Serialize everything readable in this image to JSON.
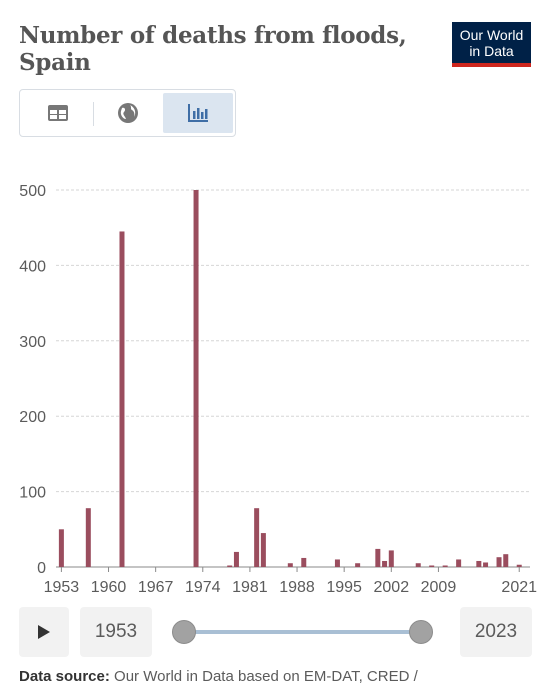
{
  "header": {
    "title_line1": "Number of deaths from floods,",
    "title_line2": "Spain",
    "logo_line1": "Our World",
    "logo_line2": "in Data"
  },
  "tabs": [
    {
      "name": "table",
      "icon": "table-icon",
      "active": false
    },
    {
      "name": "map",
      "icon": "globe-icon",
      "active": false
    },
    {
      "name": "chart",
      "icon": "bar-chart-icon",
      "active": true
    }
  ],
  "chart_data": {
    "type": "bar",
    "title": "Number of deaths from floods, Spain",
    "xlabel": "",
    "ylabel": "",
    "ylim": [
      0,
      500
    ],
    "y_ticks": [
      0,
      100,
      200,
      300,
      400,
      500
    ],
    "x_ticks": [
      "1953",
      "1960",
      "1967",
      "1974",
      "1981",
      "1988",
      "1995",
      "2002",
      "2009",
      "2021"
    ],
    "grid": true,
    "bar_color": "#9a4d5e",
    "x": [
      1953,
      1957,
      1962,
      1973,
      1978,
      1979,
      1982,
      1983,
      1987,
      1989,
      1994,
      1997,
      2000,
      2001,
      2002,
      2006,
      2008,
      2010,
      2012,
      2015,
      2016,
      2018,
      2019,
      2021
    ],
    "values": [
      50,
      78,
      445,
      500,
      2,
      20,
      78,
      45,
      5,
      12,
      10,
      5,
      24,
      8,
      22,
      5,
      2,
      2,
      10,
      8,
      6,
      13,
      17,
      3
    ]
  },
  "timeline": {
    "start_year": "1953",
    "end_year": "2023",
    "play_icon": "play-icon"
  },
  "source": {
    "label": "Data source:",
    "text": "Our World in Data based on EM-DAT, CRED /"
  },
  "colors": {
    "logo_bg": "#002147",
    "logo_accent": "#ce261e",
    "active_tab": "#dbe5f0"
  }
}
